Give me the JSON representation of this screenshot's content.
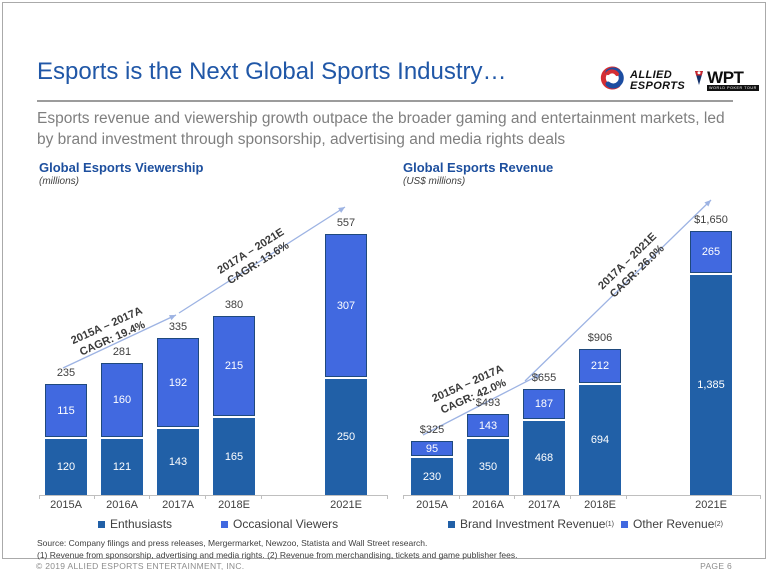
{
  "slide": {
    "title": "Esports is the Next Global Sports Industry…",
    "subtitle": "Esports revenue and viewership growth outpace the broader gaming and entertainment markets, led by brand investment through sponsorship, advertising and media rights deals",
    "source_line1": "Source: Company filings and press releases, Mergermarket, Newzoo, Statista and Wall Street research.",
    "source_line2": "(1) Revenue from sponsorship, advertising and media rights. (2) Revenue from merchandising, tickets and game publisher fees.",
    "footer_left": "© 2019 ALLIED ESPORTS ENTERTAINMENT, INC.",
    "footer_right": "PAGE 6"
  },
  "logos": {
    "allied_line1": "ALLIED",
    "allied_line2": "ESPORTS",
    "wpt_main": "WPT",
    "wpt_sub": "WORLD POKER TOUR"
  },
  "colors": {
    "accent_blue": "#4169e0",
    "dark_blue": "#2160a7",
    "navy_border": "#1f497d",
    "arrow_blue": "#9db3e3",
    "title_blue": "#2057a7",
    "chart_title_blue": "#1d4f9e"
  },
  "chart_data": [
    {
      "type": "bar",
      "stacked": true,
      "title": "Global Esports Viewership",
      "subtitle": "(millions)",
      "categories": [
        "2015A",
        "2016A",
        "2017A",
        "2018E",
        "2021E"
      ],
      "series": [
        {
          "name": "Enthusiasts",
          "color_key": "dark_blue",
          "values": [
            120,
            121,
            143,
            165,
            250
          ],
          "labels": [
            "120",
            "121",
            "143",
            "165",
            "250"
          ]
        },
        {
          "name": "Occasional Viewers",
          "color_key": "accent_blue",
          "values": [
            115,
            160,
            192,
            215,
            307
          ],
          "labels": [
            "115",
            "160",
            "192",
            "215",
            "307"
          ]
        }
      ],
      "totals": [
        "235",
        "281",
        "335",
        "380",
        "557"
      ],
      "annotations": [
        {
          "line1": "2015A – 2017A",
          "line2": "CAGR: 19.4%"
        },
        {
          "line1": "2017A – 2021E",
          "line2": "CAGR: 13.6%"
        }
      ],
      "legend": [
        {
          "label": "Enthusiasts",
          "sup": ""
        },
        {
          "label": "Occasional Viewers",
          "sup": ""
        }
      ],
      "ylim": [
        0,
        600
      ],
      "grid": false,
      "legend_position": "bottom"
    },
    {
      "type": "bar",
      "stacked": true,
      "title": "Global Esports Revenue",
      "subtitle": "(US$ millions)",
      "categories": [
        "2015A",
        "2016A",
        "2017A",
        "2018E",
        "2021E"
      ],
      "series": [
        {
          "name": "Brand Investment Revenue",
          "color_key": "dark_blue",
          "values": [
            230,
            350,
            468,
            694,
            1385
          ],
          "labels": [
            "230",
            "350",
            "468",
            "694",
            "1,385"
          ]
        },
        {
          "name": "Other Revenue",
          "color_key": "accent_blue",
          "values": [
            95,
            143,
            187,
            212,
            265
          ],
          "labels": [
            "95",
            "143",
            "187",
            "212",
            "265"
          ]
        }
      ],
      "totals": [
        "$325",
        "$493",
        "$655",
        "$906",
        "$1,650"
      ],
      "annotations": [
        {
          "line1": "2015A – 2017A",
          "line2": "CAGR: 42.0%"
        },
        {
          "line1": "2017A – 2021E",
          "line2": "CAGR: 26.0%"
        }
      ],
      "legend": [
        {
          "label": "Brand Investment Revenue",
          "sup": "(1)"
        },
        {
          "label": "Other Revenue",
          "sup": "(2)"
        }
      ],
      "ylim": [
        0,
        1800
      ],
      "grid": false,
      "legend_position": "bottom"
    }
  ]
}
